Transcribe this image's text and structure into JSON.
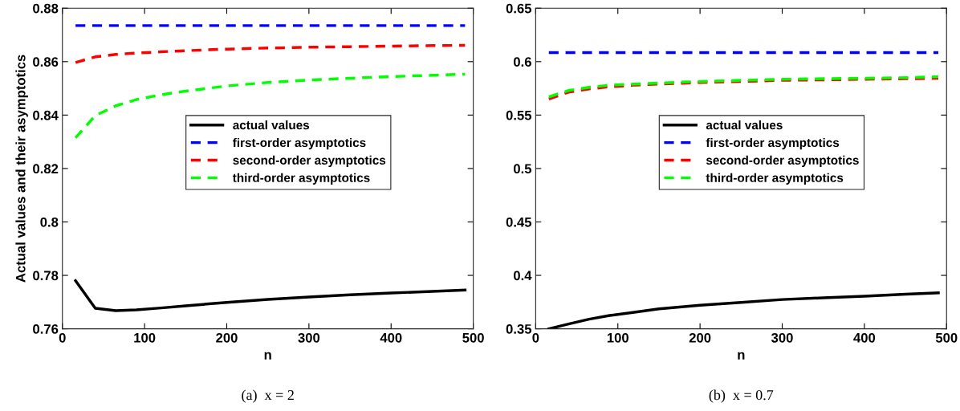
{
  "chart_data": [
    {
      "type": "line",
      "xlabel": "n",
      "ylabel": "Actual values and their asymptotics",
      "annotations": [
        "(a)  x = 2"
      ],
      "x": [
        16,
        40,
        65,
        90,
        120,
        150,
        200,
        250,
        300,
        350,
        400,
        450,
        490
      ],
      "xlim": [
        0,
        500
      ],
      "xticks": [
        0,
        100,
        200,
        300,
        400,
        500
      ],
      "ylim": [
        0.76,
        0.88
      ],
      "yticks": [
        0.76,
        0.78,
        0.8,
        0.82,
        0.84,
        0.86,
        0.88
      ],
      "legend": "center",
      "grid": false,
      "series": [
        {
          "name": "actual values",
          "color": "#000000",
          "line_style": "solid",
          "values": [
            0.778,
            0.7677,
            0.7668,
            0.7671,
            0.7678,
            0.7686,
            0.7699,
            0.771,
            0.7719,
            0.7727,
            0.7734,
            0.774,
            0.7745
          ]
        },
        {
          "name": "first-order asymptotics",
          "color": "#0000ff",
          "line_style": "dashed",
          "values": [
            0.8735,
            0.8735,
            0.8735,
            0.8735,
            0.8735,
            0.8735,
            0.8735,
            0.8735,
            0.8735,
            0.8735,
            0.8735,
            0.8735,
            0.8735
          ]
        },
        {
          "name": "second-order asymptotics",
          "color": "#ff0000",
          "line_style": "dashed",
          "values": [
            0.8597,
            0.8618,
            0.8627,
            0.8632,
            0.8637,
            0.8641,
            0.8647,
            0.8651,
            0.8654,
            0.8656,
            0.8658,
            0.866,
            0.8661
          ]
        },
        {
          "name": "third-order asymptotics",
          "color": "#00ff00",
          "line_style": "dashed",
          "values": [
            0.8315,
            0.8398,
            0.8435,
            0.8458,
            0.8476,
            0.849,
            0.8509,
            0.8522,
            0.8531,
            0.8538,
            0.8544,
            0.8549,
            0.8553
          ]
        }
      ]
    },
    {
      "type": "line",
      "xlabel": "n",
      "annotations": [
        "(b)  x = 0.7"
      ],
      "x": [
        16,
        40,
        65,
        90,
        120,
        150,
        200,
        250,
        300,
        350,
        400,
        450,
        490
      ],
      "xlim": [
        0,
        500
      ],
      "xticks": [
        0,
        100,
        200,
        300,
        400,
        500
      ],
      "ylim": [
        0.35,
        0.65
      ],
      "yticks": [
        0.35,
        0.4,
        0.45,
        0.5,
        0.55,
        0.6,
        0.65
      ],
      "legend": "center",
      "grid": false,
      "series": [
        {
          "name": "actual values",
          "color": "#000000",
          "line_style": "solid",
          "values": [
            0.35,
            0.3545,
            0.359,
            0.3625,
            0.3655,
            0.3687,
            0.372,
            0.3747,
            0.3774,
            0.379,
            0.3805,
            0.3824,
            0.3837
          ]
        },
        {
          "name": "first-order asymptotics",
          "color": "#0000ff",
          "line_style": "dashed",
          "values": [
            0.6085,
            0.6085,
            0.6085,
            0.6085,
            0.6085,
            0.6085,
            0.6085,
            0.6085,
            0.6085,
            0.6085,
            0.6085,
            0.6085,
            0.6085
          ]
        },
        {
          "name": "second-order asymptotics",
          "color": "#ff0000",
          "line_style": "dashed",
          "values": [
            0.565,
            0.5715,
            0.5745,
            0.5765,
            0.578,
            0.579,
            0.5805,
            0.5815,
            0.5825,
            0.583,
            0.5835,
            0.584,
            0.5845
          ]
        },
        {
          "name": "third-order asymptotics",
          "color": "#00ff00",
          "line_style": "dashed",
          "values": [
            0.567,
            0.573,
            0.576,
            0.578,
            0.579,
            0.58,
            0.5815,
            0.5825,
            0.5835,
            0.584,
            0.5845,
            0.585,
            0.586
          ]
        }
      ]
    }
  ]
}
